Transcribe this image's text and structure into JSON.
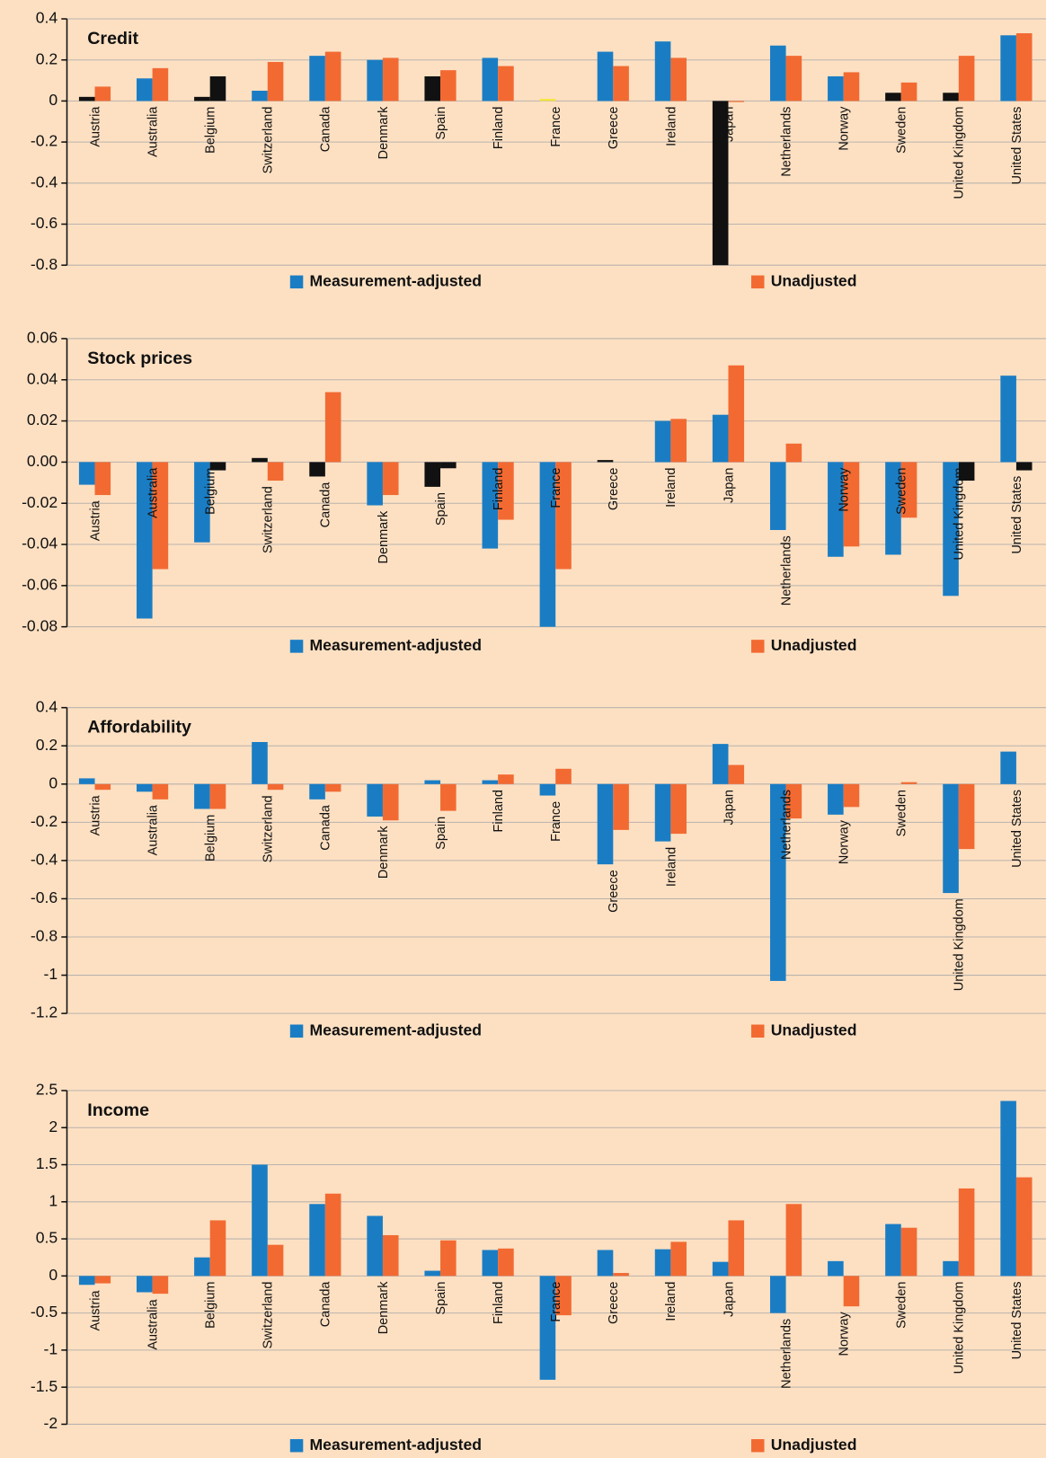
{
  "chart_data": [
    {
      "type": "bar",
      "title": "Credit",
      "categories": [
        "Austria",
        "Australia",
        "Belgium",
        "Switzerland",
        "Canada",
        "Denmark",
        "Spain",
        "Finland",
        "France",
        "Greece",
        "Ireland",
        "Japan",
        "Netherlands",
        "Norway",
        "Sweden",
        "United Kingdom",
        "United States"
      ],
      "series": [
        {
          "name": "Measurement-adjusted",
          "color": "#1a7dc4",
          "values": [
            0.02,
            0.11,
            0.02,
            0.05,
            0.22,
            0.2,
            0.12,
            0.21,
            0.01,
            0.24,
            0.29,
            -0.8,
            0.27,
            0.12,
            0.04,
            0.04,
            0.32
          ],
          "point_colors": [
            "#111111",
            null,
            "#111111",
            null,
            null,
            null,
            "#111111",
            null,
            "#f5e63a",
            null,
            null,
            "#111111",
            null,
            null,
            "#111111",
            "#111111",
            null
          ]
        },
        {
          "name": "Unadjusted",
          "color": "#f26a32",
          "values": [
            0.07,
            0.16,
            0.12,
            0.19,
            0.24,
            0.21,
            0.15,
            0.17,
            null,
            0.17,
            0.21,
            -0.005,
            0.22,
            0.14,
            0.09,
            0.22,
            0.33
          ],
          "point_colors": [
            null,
            null,
            "#111111",
            null,
            null,
            null,
            null,
            null,
            null,
            null,
            null,
            null,
            null,
            null,
            null,
            null,
            null
          ]
        }
      ],
      "ylim": [
        -0.8,
        0.4
      ],
      "yticks": [
        -0.8,
        -0.6,
        -0.4,
        -0.2,
        0,
        0.2,
        0.4
      ],
      "grid": true
    },
    {
      "type": "bar",
      "title": "Stock prices",
      "categories": [
        "Austria",
        "Australia",
        "Belgium",
        "Switzerland",
        "Canada",
        "Denmark",
        "Spain",
        "Finland",
        "France",
        "Greece",
        "Ireland",
        "Japan",
        "Netherlands",
        "Norway",
        "Sweden",
        "United Kingdom",
        "United States"
      ],
      "series": [
        {
          "name": "Measurement-adjusted",
          "color": "#1a7dc4",
          "values": [
            -0.011,
            -0.076,
            -0.039,
            0.002,
            -0.007,
            -0.021,
            -0.012,
            -0.042,
            -0.08,
            0.001,
            0.02,
            0.023,
            -0.033,
            -0.046,
            -0.045,
            -0.065,
            0.042
          ],
          "point_colors": [
            null,
            null,
            null,
            "#111111",
            "#111111",
            null,
            "#111111",
            null,
            null,
            "#111111",
            null,
            null,
            null,
            null,
            null,
            null,
            null
          ]
        },
        {
          "name": "Unadjusted",
          "color": "#f26a32",
          "values": [
            -0.016,
            -0.052,
            -0.004,
            -0.009,
            0.034,
            -0.016,
            -0.003,
            -0.028,
            -0.052,
            null,
            0.021,
            0.047,
            0.009,
            -0.041,
            -0.027,
            -0.009,
            -0.004
          ],
          "point_colors": [
            null,
            null,
            "#111111",
            null,
            null,
            null,
            "#111111",
            null,
            null,
            null,
            null,
            null,
            null,
            null,
            null,
            "#111111",
            "#111111"
          ]
        }
      ],
      "ylim": [
        -0.08,
        0.06
      ],
      "yticks": [
        -0.08,
        -0.06,
        -0.04,
        -0.02,
        {
          "value": 0,
          "label": "0.00"
        },
        0.02,
        0.04,
        0.06
      ],
      "grid": true
    },
    {
      "type": "bar",
      "title": "Affordability",
      "categories": [
        "Austria",
        "Australia",
        "Belgium",
        "Switzerland",
        "Canada",
        "Denmark",
        "Spain",
        "Finland",
        "France",
        "Greece",
        "Ireland",
        "Japan",
        "Netherlands",
        "Norway",
        "Sweden",
        "United Kingdom",
        "United States"
      ],
      "series": [
        {
          "name": "Measurement-adjusted",
          "color": "#1a7dc4",
          "values": [
            0.03,
            -0.04,
            -0.13,
            0.22,
            -0.08,
            -0.17,
            0.02,
            0.02,
            -0.06,
            -0.42,
            -0.3,
            0.21,
            -1.03,
            -0.16,
            null,
            -0.57,
            0.17
          ]
        },
        {
          "name": "Unadjusted",
          "color": "#f26a32",
          "values": [
            -0.03,
            -0.08,
            -0.13,
            -0.03,
            -0.04,
            -0.19,
            -0.14,
            0.05,
            0.08,
            -0.24,
            -0.26,
            0.1,
            -0.18,
            -0.12,
            0.01,
            -0.34,
            null
          ]
        }
      ],
      "ylim": [
        -1.2,
        0.4
      ],
      "yticks": [
        -1.2,
        -1,
        -0.8,
        -0.6,
        -0.4,
        -0.2,
        0,
        0.2,
        0.4
      ],
      "grid": true
    },
    {
      "type": "bar",
      "title": "Income",
      "categories": [
        "Austria",
        "Australia",
        "Belgium",
        "Switzerland",
        "Canada",
        "Denmark",
        "Spain",
        "Finland",
        "France",
        "Greece",
        "Ireland",
        "Japan",
        "Netherlands",
        "Norway",
        "Sweden",
        "United Kingdom",
        "United States"
      ],
      "series": [
        {
          "name": "Measurement-adjusted",
          "color": "#1a7dc4",
          "values": [
            -0.12,
            -0.22,
            0.25,
            1.5,
            0.97,
            0.81,
            0.07,
            0.35,
            -1.4,
            0.35,
            0.36,
            0.19,
            -0.5,
            0.2,
            0.7,
            0.2,
            2.36
          ]
        },
        {
          "name": "Unadjusted",
          "color": "#f26a32",
          "values": [
            -0.1,
            -0.24,
            0.75,
            0.42,
            1.11,
            0.55,
            0.48,
            0.37,
            -0.53,
            0.04,
            0.46,
            0.75,
            0.97,
            -0.41,
            0.65,
            1.18,
            1.33
          ]
        }
      ],
      "ylim": [
        -2,
        2.5
      ],
      "yticks": [
        -2,
        -1.5,
        -1,
        -0.5,
        0,
        0.5,
        1,
        1.5,
        2,
        2.5
      ],
      "grid": true
    }
  ]
}
